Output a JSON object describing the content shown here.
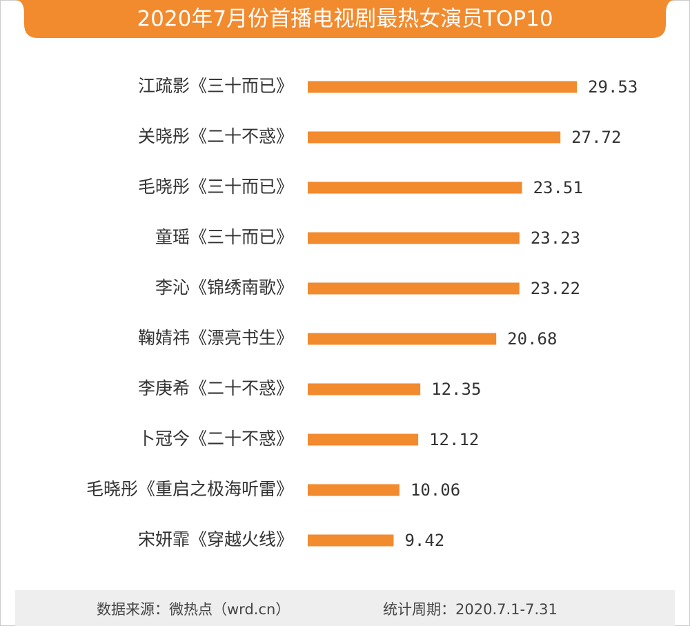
{
  "chart_data": {
    "type": "bar",
    "orientation": "horizontal",
    "title": "2020年7月份首播电视剧最热女演员TOP10",
    "categories": [
      "江疏影《三十而已》",
      "关晓彤《二十不惑》",
      "毛晓彤《三十而已》",
      "童瑶《三十而已》",
      "李沁《锦绣南歌》",
      "鞠婧祎《漂亮书生》",
      "李庚希《二十不惑》",
      "卜冠今《二十不惑》",
      "毛晓彤《重启之极海听雷》",
      "宋妍霏《穿越火线》"
    ],
    "values": [
      29.53,
      27.72,
      23.51,
      23.23,
      23.22,
      20.68,
      12.35,
      12.12,
      10.06,
      9.42
    ],
    "color": "#f28a2e",
    "source": "数据来源：微热点（wrd.cn）",
    "period": "统计周期：2020.7.1-7.31"
  }
}
